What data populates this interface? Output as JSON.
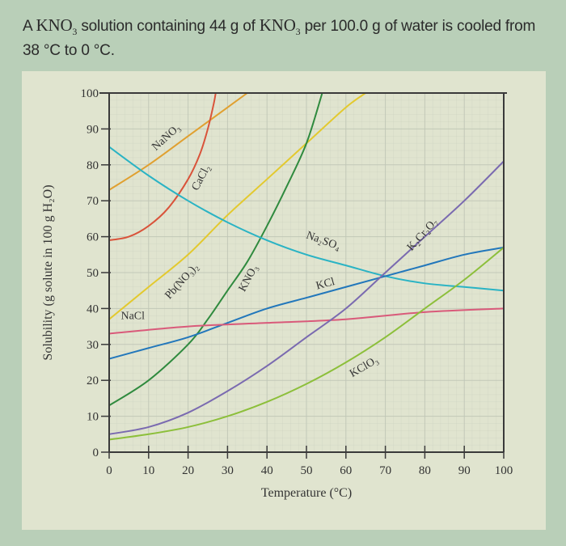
{
  "question": {
    "part1": "A ",
    "chem1": "KNO",
    "sub1": "3",
    "part2": " solution containing 44 g of ",
    "chem2": "KNO",
    "sub2": "3",
    "part3": " per 100.0 g of water is cooled from 38 °C to 0 °C."
  },
  "colors": {
    "page_bg": "#b9cfb8",
    "panel_bg": "#e0e4cf",
    "grid": "#bfc6b6",
    "axis": "#3a3a3a"
  },
  "chart_data": {
    "type": "line",
    "title": "",
    "xlabel": "Temperature (°C)",
    "ylabel": "Solubility (g solute in 100 g H₂O)",
    "xlim": [
      0,
      100
    ],
    "ylim": [
      0,
      100
    ],
    "x_ticks": [
      0,
      10,
      20,
      30,
      40,
      50,
      60,
      70,
      80,
      90,
      100
    ],
    "y_ticks": [
      0,
      10,
      20,
      30,
      40,
      50,
      60,
      70,
      80,
      90,
      100
    ],
    "grid": true,
    "legend": "inline labels on curves",
    "series": [
      {
        "name": "NaNO₃",
        "color": "#e0a030",
        "points": [
          [
            0,
            73
          ],
          [
            10,
            80
          ],
          [
            20,
            88
          ],
          [
            30,
            96
          ],
          [
            35,
            100
          ]
        ],
        "label": {
          "x": 15,
          "y": 87,
          "angle": -42
        }
      },
      {
        "name": "CaCl₂",
        "color": "#d9533a",
        "points": [
          [
            0,
            59
          ],
          [
            5,
            60
          ],
          [
            10,
            63
          ],
          [
            15,
            68
          ],
          [
            20,
            76
          ],
          [
            23,
            83
          ],
          [
            25,
            90
          ],
          [
            26.5,
            97
          ],
          [
            27,
            100
          ]
        ],
        "label": {
          "x": 24,
          "y": 76,
          "angle": -62
        }
      },
      {
        "name": "Pb(NO₃)₂",
        "color": "#e3c92e",
        "points": [
          [
            0,
            37
          ],
          [
            10,
            46
          ],
          [
            20,
            55
          ],
          [
            30,
            66
          ],
          [
            40,
            76
          ],
          [
            50,
            86
          ],
          [
            60,
            96
          ],
          [
            65,
            100
          ]
        ],
        "label": {
          "x": 19,
          "y": 47,
          "angle": -48
        }
      },
      {
        "name": "KNO₃",
        "color": "#2f8a3e",
        "points": [
          [
            0,
            13
          ],
          [
            10,
            20
          ],
          [
            20,
            30
          ],
          [
            25,
            37
          ],
          [
            30,
            45
          ],
          [
            35,
            53
          ],
          [
            40,
            63
          ],
          [
            45,
            74
          ],
          [
            50,
            86
          ],
          [
            54,
            100
          ]
        ],
        "label": {
          "x": 36,
          "y": 48,
          "angle": -62
        }
      },
      {
        "name": "Na₂SO₄",
        "color": "#2ab3c4",
        "points": [
          [
            0,
            85
          ],
          [
            10,
            77
          ],
          [
            20,
            70
          ],
          [
            30,
            64
          ],
          [
            40,
            59
          ],
          [
            50,
            55
          ],
          [
            60,
            52
          ],
          [
            70,
            49
          ],
          [
            80,
            47
          ],
          [
            90,
            46
          ],
          [
            100,
            45
          ]
        ],
        "label": {
          "x": 54,
          "y": 58,
          "angle": 20
        }
      },
      {
        "name": "KCl",
        "color": "#2277bb",
        "points": [
          [
            0,
            26
          ],
          [
            10,
            29
          ],
          [
            20,
            32
          ],
          [
            30,
            36
          ],
          [
            40,
            40
          ],
          [
            50,
            43
          ],
          [
            60,
            46
          ],
          [
            70,
            49
          ],
          [
            80,
            52
          ],
          [
            90,
            55
          ],
          [
            100,
            57
          ]
        ],
        "label": {
          "x": 55,
          "y": 46,
          "angle": -15
        }
      },
      {
        "name": "NaCl",
        "color": "#d95a7a",
        "points": [
          [
            0,
            33
          ],
          [
            20,
            35
          ],
          [
            40,
            36
          ],
          [
            60,
            37
          ],
          [
            80,
            39
          ],
          [
            100,
            40
          ]
        ],
        "label": {
          "x": 6,
          "y": 37,
          "angle": 0
        }
      },
      {
        "name": "K₂Cr₂O₇",
        "color": "#7a6ab0",
        "points": [
          [
            0,
            5
          ],
          [
            10,
            7
          ],
          [
            20,
            11
          ],
          [
            30,
            17
          ],
          [
            40,
            24
          ],
          [
            50,
            32
          ],
          [
            60,
            40
          ],
          [
            70,
            50
          ],
          [
            80,
            60
          ],
          [
            90,
            70
          ],
          [
            100,
            81
          ]
        ],
        "label": {
          "x": 80,
          "y": 60,
          "angle": -48
        }
      },
      {
        "name": "KClO₃",
        "color": "#8cbf3a",
        "points": [
          [
            0,
            3.5
          ],
          [
            10,
            5
          ],
          [
            20,
            7
          ],
          [
            30,
            10
          ],
          [
            40,
            14
          ],
          [
            50,
            19
          ],
          [
            60,
            25
          ],
          [
            70,
            32
          ],
          [
            80,
            40
          ],
          [
            90,
            48
          ],
          [
            100,
            57
          ]
        ],
        "label": {
          "x": 65,
          "y": 23,
          "angle": -30
        }
      }
    ]
  }
}
